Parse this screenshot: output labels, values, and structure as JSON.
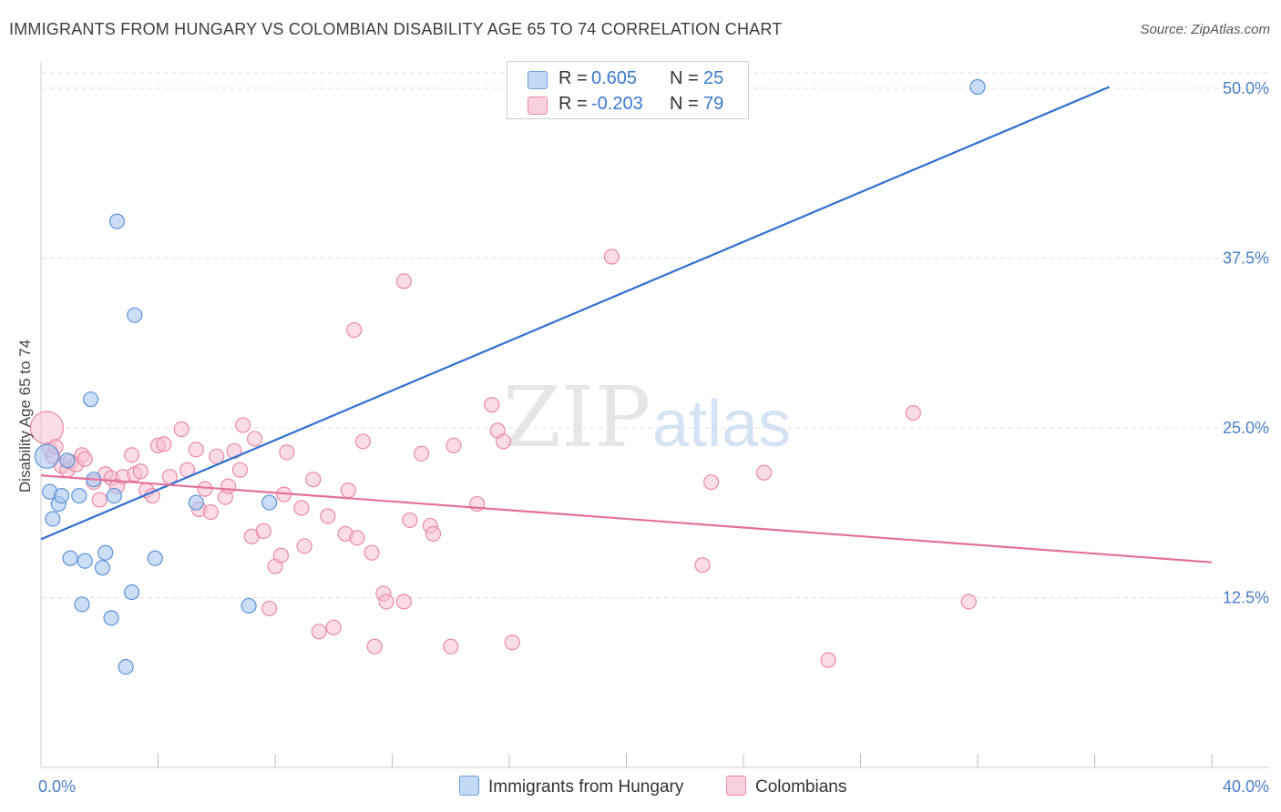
{
  "title": "IMMIGRANTS FROM HUNGARY VS COLOMBIAN DISABILITY AGE 65 TO 74 CORRELATION CHART",
  "source": "Source: ZipAtlas.com",
  "watermark": {
    "zip": "ZIP",
    "atlas": "atlas"
  },
  "legend": {
    "rows": [
      {
        "r_label": "R =",
        "r_value": "0.605",
        "n_label": "N =",
        "n_value": "25",
        "color": "#a9c8f0",
        "border": "#6e9fde"
      },
      {
        "r_label": "R =",
        "r_value": "-0.203",
        "n_label": "N =",
        "n_value": "79",
        "color": "#f6bfd0",
        "border": "#e98aa9"
      }
    ]
  },
  "bottom_legend": {
    "series1": "Immigrants from Hungary",
    "series2": "Colombians"
  },
  "colors": {
    "blue_fill": "#a9c8f0",
    "blue_stroke": "#5e93d8",
    "blue_line": "#2f6fcf",
    "pink_fill": "#f6bfd0",
    "pink_stroke": "#e98aa9",
    "pink_line": "#e4709a",
    "axis_label": "#4a7fc9",
    "grid": "#e2e2e2"
  },
  "chart_data": {
    "type": "scatter",
    "title": "IMMIGRANTS FROM HUNGARY VS COLOMBIAN DISABILITY AGE 65 TO 74 CORRELATION CHART",
    "xlabel": "",
    "ylabel": "Disability Age 65 to 74",
    "xlim": [
      0,
      40
    ],
    "ylim": [
      0,
      52.5
    ],
    "x_tick_labels": [
      "0.0%",
      "40.0%"
    ],
    "y_ticks": [
      12.5,
      25.0,
      37.5,
      50.0
    ],
    "y_tick_labels": [
      "12.5%",
      "25.0%",
      "37.5%",
      "50.0%"
    ],
    "x_minor_ticks": [
      4,
      8,
      12,
      16,
      20,
      24,
      28,
      32,
      36
    ],
    "grid": true,
    "series": [
      {
        "name": "Immigrants from Hungary",
        "points": [
          [
            0.2,
            22.9
          ],
          [
            0.3,
            20.3
          ],
          [
            0.4,
            18.3
          ],
          [
            0.6,
            19.4
          ],
          [
            0.7,
            20.0
          ],
          [
            0.9,
            22.6
          ],
          [
            1.0,
            15.4
          ],
          [
            1.3,
            20.0
          ],
          [
            1.4,
            12.0
          ],
          [
            1.5,
            15.2
          ],
          [
            1.7,
            27.1
          ],
          [
            1.8,
            21.2
          ],
          [
            2.1,
            14.7
          ],
          [
            2.2,
            15.8
          ],
          [
            2.4,
            11.0
          ],
          [
            2.5,
            20.0
          ],
          [
            2.6,
            40.2
          ],
          [
            3.1,
            12.9
          ],
          [
            3.2,
            33.3
          ],
          [
            2.9,
            7.4
          ],
          [
            3.9,
            15.4
          ],
          [
            5.3,
            19.5
          ],
          [
            7.1,
            11.9
          ],
          [
            7.8,
            19.5
          ],
          [
            32.0,
            50.1
          ]
        ],
        "trend": {
          "x": [
            0,
            36.5
          ],
          "y": [
            16.8,
            50.1
          ]
        }
      },
      {
        "name": "Colombians",
        "points": [
          [
            0.2,
            25.0
          ],
          [
            0.3,
            23.4
          ],
          [
            0.4,
            22.9
          ],
          [
            0.5,
            23.6
          ],
          [
            0.7,
            22.2
          ],
          [
            0.9,
            21.9
          ],
          [
            1.0,
            22.5
          ],
          [
            1.2,
            22.3
          ],
          [
            1.4,
            23.0
          ],
          [
            1.5,
            22.7
          ],
          [
            1.8,
            21.0
          ],
          [
            2.0,
            19.7
          ],
          [
            2.2,
            21.6
          ],
          [
            2.4,
            21.3
          ],
          [
            2.6,
            20.7
          ],
          [
            2.8,
            21.4
          ],
          [
            3.1,
            23.0
          ],
          [
            3.2,
            21.6
          ],
          [
            3.4,
            21.8
          ],
          [
            3.6,
            20.4
          ],
          [
            3.8,
            20.0
          ],
          [
            4.0,
            23.7
          ],
          [
            4.2,
            23.8
          ],
          [
            4.4,
            21.4
          ],
          [
            4.8,
            24.9
          ],
          [
            5.0,
            21.9
          ],
          [
            5.3,
            23.4
          ],
          [
            5.4,
            19.0
          ],
          [
            5.6,
            20.5
          ],
          [
            5.8,
            18.8
          ],
          [
            6.0,
            22.9
          ],
          [
            6.3,
            19.9
          ],
          [
            6.4,
            20.7
          ],
          [
            6.6,
            23.3
          ],
          [
            6.8,
            21.9
          ],
          [
            6.9,
            25.2
          ],
          [
            7.2,
            17.0
          ],
          [
            7.3,
            24.2
          ],
          [
            7.6,
            17.4
          ],
          [
            7.8,
            11.7
          ],
          [
            8.0,
            14.8
          ],
          [
            8.2,
            15.6
          ],
          [
            8.3,
            20.1
          ],
          [
            8.4,
            23.2
          ],
          [
            8.9,
            19.1
          ],
          [
            9.0,
            16.3
          ],
          [
            9.3,
            21.2
          ],
          [
            9.5,
            10.0
          ],
          [
            9.8,
            18.5
          ],
          [
            10.0,
            10.3
          ],
          [
            10.4,
            17.2
          ],
          [
            10.5,
            20.4
          ],
          [
            10.8,
            16.9
          ],
          [
            10.7,
            32.2
          ],
          [
            11.0,
            24.0
          ],
          [
            11.3,
            15.8
          ],
          [
            11.4,
            8.9
          ],
          [
            11.7,
            12.8
          ],
          [
            11.8,
            12.2
          ],
          [
            12.4,
            12.2
          ],
          [
            12.4,
            35.8
          ],
          [
            12.6,
            18.2
          ],
          [
            13.0,
            23.1
          ],
          [
            13.3,
            17.8
          ],
          [
            13.4,
            17.2
          ],
          [
            14.0,
            8.9
          ],
          [
            14.1,
            23.7
          ],
          [
            14.9,
            19.4
          ],
          [
            15.4,
            26.7
          ],
          [
            15.6,
            24.8
          ],
          [
            15.8,
            24.0
          ],
          [
            16.1,
            9.2
          ],
          [
            19.5,
            37.6
          ],
          [
            22.6,
            14.9
          ],
          [
            22.9,
            21.0
          ],
          [
            24.7,
            21.7
          ],
          [
            26.9,
            7.9
          ],
          [
            29.8,
            26.1
          ],
          [
            31.7,
            12.2
          ]
        ],
        "trend": {
          "x": [
            0,
            40
          ],
          "y": [
            21.5,
            15.1
          ]
        }
      }
    ]
  }
}
